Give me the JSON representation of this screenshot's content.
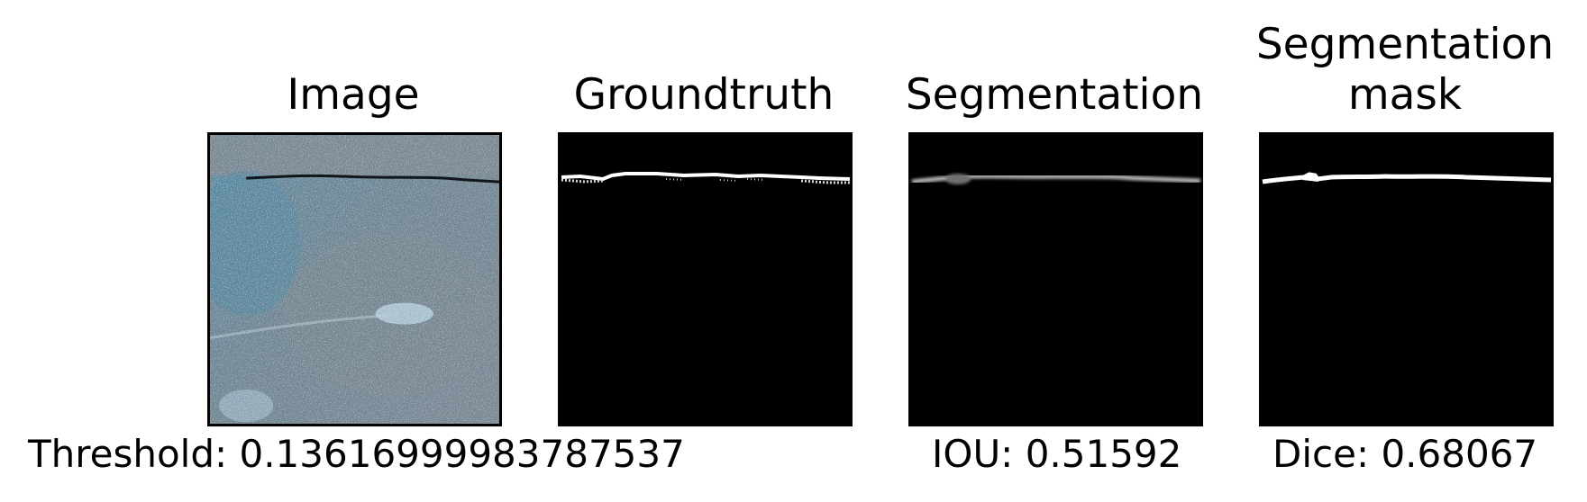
{
  "panels": [
    {
      "title": "Image"
    },
    {
      "title": "Groundtruth"
    },
    {
      "title": "Segmentation"
    },
    {
      "title": "Segmentation\nmask"
    }
  ],
  "metrics": {
    "threshold": "Threshold: 0.13616999983787537",
    "iou": "IOU: 0.51592",
    "dice": "Dice: 0.68067"
  },
  "colors": {
    "background": "#ffffff",
    "mask": "#000000",
    "crack": "#ffffff",
    "concrete_blue": "#5f8fa6",
    "concrete_gray": "#7d848a"
  }
}
